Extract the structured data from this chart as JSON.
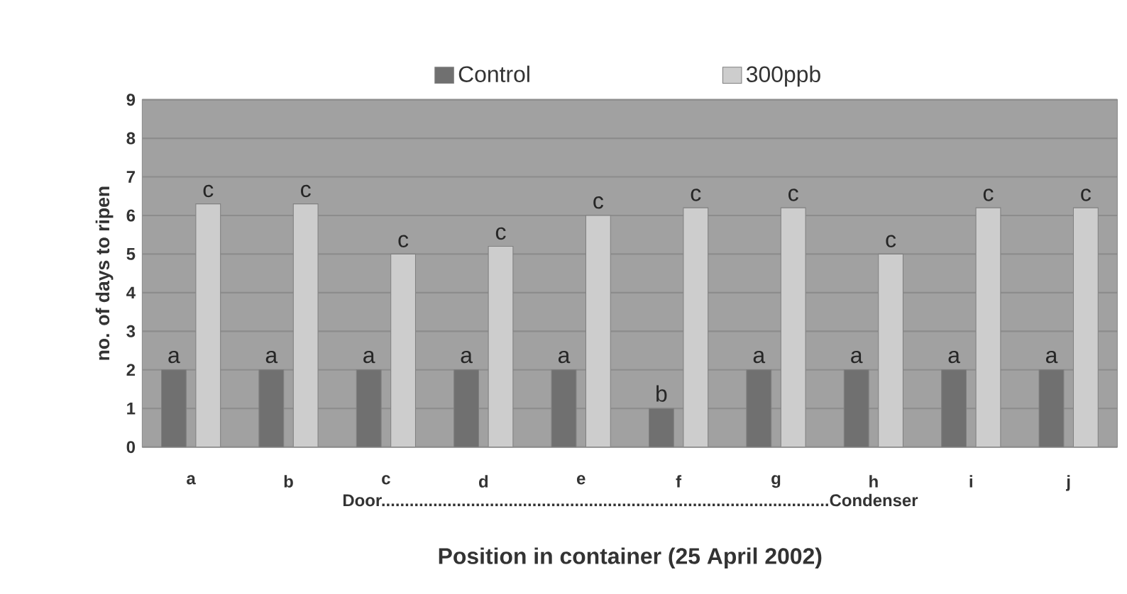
{
  "chart_data": {
    "type": "bar",
    "xlabel": "Position in container (25 April 2002)",
    "ylabel": "no. of days to ripen",
    "categories": [
      "a",
      "b",
      "c",
      "d",
      "e",
      "f",
      "g",
      "h",
      "i",
      "j"
    ],
    "series": [
      {
        "name": "Control",
        "color": "#707070",
        "values": [
          2,
          2,
          2,
          2,
          2,
          1,
          2,
          2,
          2,
          2
        ],
        "value_labels": [
          "a",
          "a",
          "a",
          "a",
          "a",
          "b",
          "a",
          "a",
          "a",
          "a"
        ]
      },
      {
        "name": "300ppb",
        "color": "#cdcdcd",
        "values": [
          6.3,
          6.3,
          5.0,
          5.2,
          6.0,
          6.2,
          6.2,
          5.0,
          6.2,
          6.2
        ],
        "value_labels": [
          "c",
          "c",
          "c",
          "c",
          "c",
          "c",
          "c",
          "c",
          "c",
          "c"
        ]
      }
    ],
    "annotations": [
      "Door...............................................................................................Condenser"
    ],
    "ylim": [
      0,
      9
    ],
    "yticks": [
      0,
      1,
      2,
      3,
      4,
      5,
      6,
      7,
      8,
      9
    ],
    "grid": "y",
    "legend": "top"
  }
}
